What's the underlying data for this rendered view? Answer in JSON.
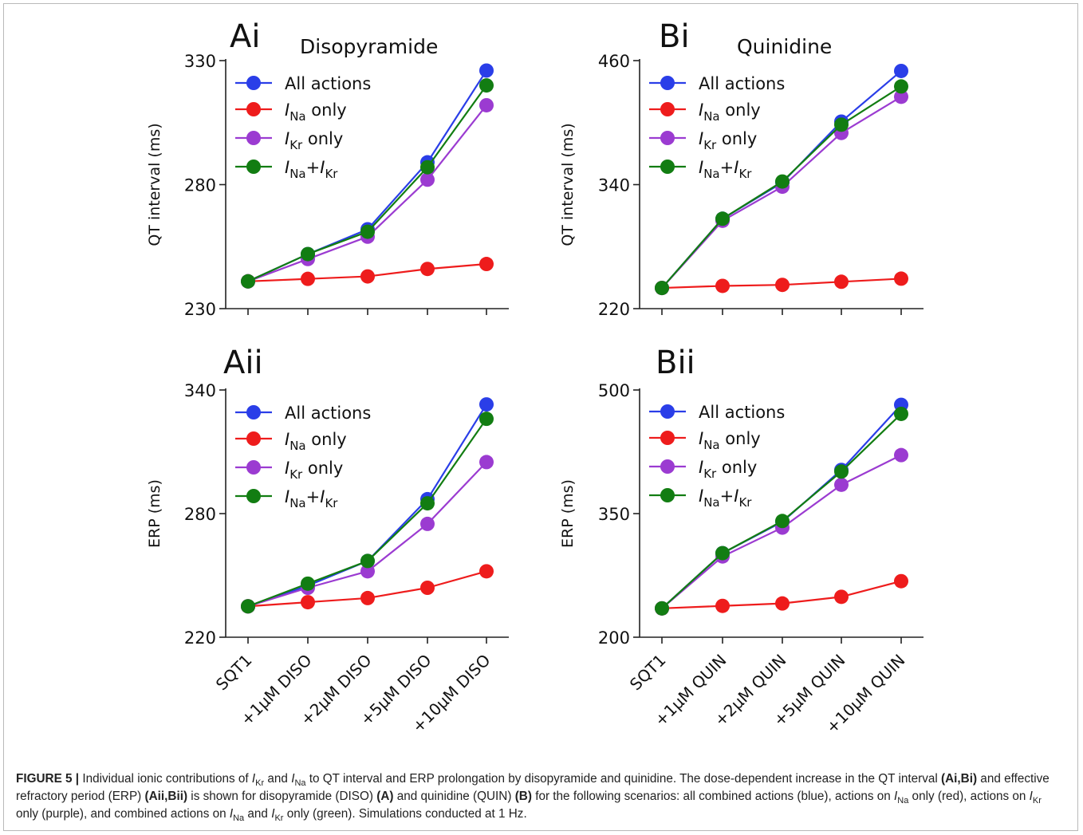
{
  "series_styles": [
    {
      "key": "all",
      "color": "#2a3ee8",
      "label_main": "All actions",
      "label_sub": "",
      "label_after": ""
    },
    {
      "key": "na",
      "color": "#ee1c1c",
      "label_main": "I",
      "label_sub": "Na",
      "label_after": " only"
    },
    {
      "key": "kr",
      "color": "#9b3bd1",
      "label_main": "I",
      "label_sub": "Kr",
      "label_after": " only"
    },
    {
      "key": "nakr",
      "color": "#127d12",
      "label_main": "I",
      "label_sub": "Na",
      "label_after": "+",
      "label_main2": "I",
      "label_sub2": "Kr"
    }
  ],
  "chart_data": [
    {
      "panel": "Ai",
      "type": "line",
      "title": "Disopyramide",
      "ylabel": "QT interval (ms)",
      "ylim": [
        230,
        330
      ],
      "yticks": [
        230,
        280,
        330
      ],
      "categories": [
        "SQT1",
        "+1μM DISO",
        "+2μM DISO",
        "+5μM DISO",
        "+10μM DISO"
      ],
      "series": [
        {
          "name": "All actions",
          "values": [
            241,
            252,
            262,
            289,
            326
          ]
        },
        {
          "name": "INa only",
          "values": [
            241,
            242,
            243,
            246,
            248
          ]
        },
        {
          "name": "IKr only",
          "values": [
            241,
            250,
            259,
            282,
            312
          ]
        },
        {
          "name": "INa+IKr",
          "values": [
            241,
            252,
            261,
            287,
            320
          ]
        }
      ],
      "legend": "top-left"
    },
    {
      "panel": "Bi",
      "type": "line",
      "title": "Quinidine",
      "ylabel": "QT interval (ms)",
      "ylim": [
        220,
        460
      ],
      "yticks": [
        220,
        340,
        460
      ],
      "categories": [
        "SQT1",
        "+1μM QUIN",
        "+2μM QUIN",
        "+5μM QUIN",
        "+10μM QUIN"
      ],
      "series": [
        {
          "name": "All actions",
          "values": [
            240,
            307,
            342,
            401,
            450
          ]
        },
        {
          "name": "INa only",
          "values": [
            240,
            242,
            243,
            246,
            249
          ]
        },
        {
          "name": "IKr only",
          "values": [
            240,
            305,
            338,
            390,
            425
          ]
        },
        {
          "name": "INa+IKr",
          "values": [
            240,
            307,
            343,
            398,
            435
          ]
        }
      ],
      "legend": "top-left"
    },
    {
      "panel": "Aii",
      "type": "line",
      "title": "",
      "ylabel": "ERP (ms)",
      "ylim": [
        220,
        340
      ],
      "yticks": [
        220,
        280,
        340
      ],
      "categories": [
        "SQT1",
        "+1μM DISO",
        "+2μM DISO",
        "+5μM DISO",
        "+10μM DISO"
      ],
      "series": [
        {
          "name": "All actions",
          "values": [
            235,
            245,
            257,
            287,
            333
          ]
        },
        {
          "name": "INa only",
          "values": [
            235,
            237,
            239,
            244,
            252
          ]
        },
        {
          "name": "IKr only",
          "values": [
            235,
            244,
            252,
            275,
            305
          ]
        },
        {
          "name": "INa+IKr",
          "values": [
            235,
            246,
            257,
            285,
            326
          ]
        }
      ],
      "legend": "top-left"
    },
    {
      "panel": "Bii",
      "type": "line",
      "title": "",
      "ylabel": "ERP (ms)",
      "ylim": [
        200,
        500
      ],
      "yticks": [
        200,
        350,
        500
      ],
      "categories": [
        "SQT1",
        "+1μM QUIN",
        "+2μM QUIN",
        "+5μM QUIN",
        "+10μM QUIN"
      ],
      "series": [
        {
          "name": "All actions",
          "values": [
            235,
            302,
            340,
            403,
            482
          ]
        },
        {
          "name": "INa only",
          "values": [
            235,
            238,
            241,
            249,
            268
          ]
        },
        {
          "name": "IKr only",
          "values": [
            235,
            298,
            333,
            385,
            421
          ]
        },
        {
          "name": "INa+IKr",
          "values": [
            235,
            302,
            341,
            401,
            471
          ]
        }
      ],
      "legend": "top-left"
    }
  ],
  "caption": {
    "label": "FIGURE 5 |",
    "segments": [
      {
        "t": " Individual ionic contributions of ",
        "s": "n"
      },
      {
        "t": "I",
        "s": "i"
      },
      {
        "t": "Kr",
        "s": "sub"
      },
      {
        "t": " and ",
        "s": "n"
      },
      {
        "t": "I",
        "s": "i"
      },
      {
        "t": "Na",
        "s": "sub"
      },
      {
        "t": " to QT interval and ERP prolongation by disopyramide and quinidine. The dose-dependent increase in the QT interval ",
        "s": "n"
      },
      {
        "t": "(Ai,Bi)",
        "s": "b"
      },
      {
        "t": " and effective refractory period (ERP) ",
        "s": "n"
      },
      {
        "t": "(Aii,Bii)",
        "s": "b"
      },
      {
        "t": " is shown for disopyramide (DISO) ",
        "s": "n"
      },
      {
        "t": "(A)",
        "s": "b"
      },
      {
        "t": " and quinidine (QUIN) ",
        "s": "n"
      },
      {
        "t": "(B)",
        "s": "b"
      },
      {
        "t": " for the following scenarios: all combined actions (blue), actions on ",
        "s": "n"
      },
      {
        "t": "I",
        "s": "i"
      },
      {
        "t": "Na",
        "s": "sub"
      },
      {
        "t": " only (red), actions on ",
        "s": "n"
      },
      {
        "t": "I",
        "s": "i"
      },
      {
        "t": "Kr",
        "s": "sub"
      },
      {
        "t": " only (purple), and combined actions on ",
        "s": "n"
      },
      {
        "t": "I",
        "s": "i"
      },
      {
        "t": "Na",
        "s": "sub"
      },
      {
        "t": " and ",
        "s": "n"
      },
      {
        "t": "I",
        "s": "i"
      },
      {
        "t": "Kr",
        "s": "sub"
      },
      {
        "t": " only (green). Simulations conducted at 1 Hz.",
        "s": "n"
      }
    ]
  }
}
